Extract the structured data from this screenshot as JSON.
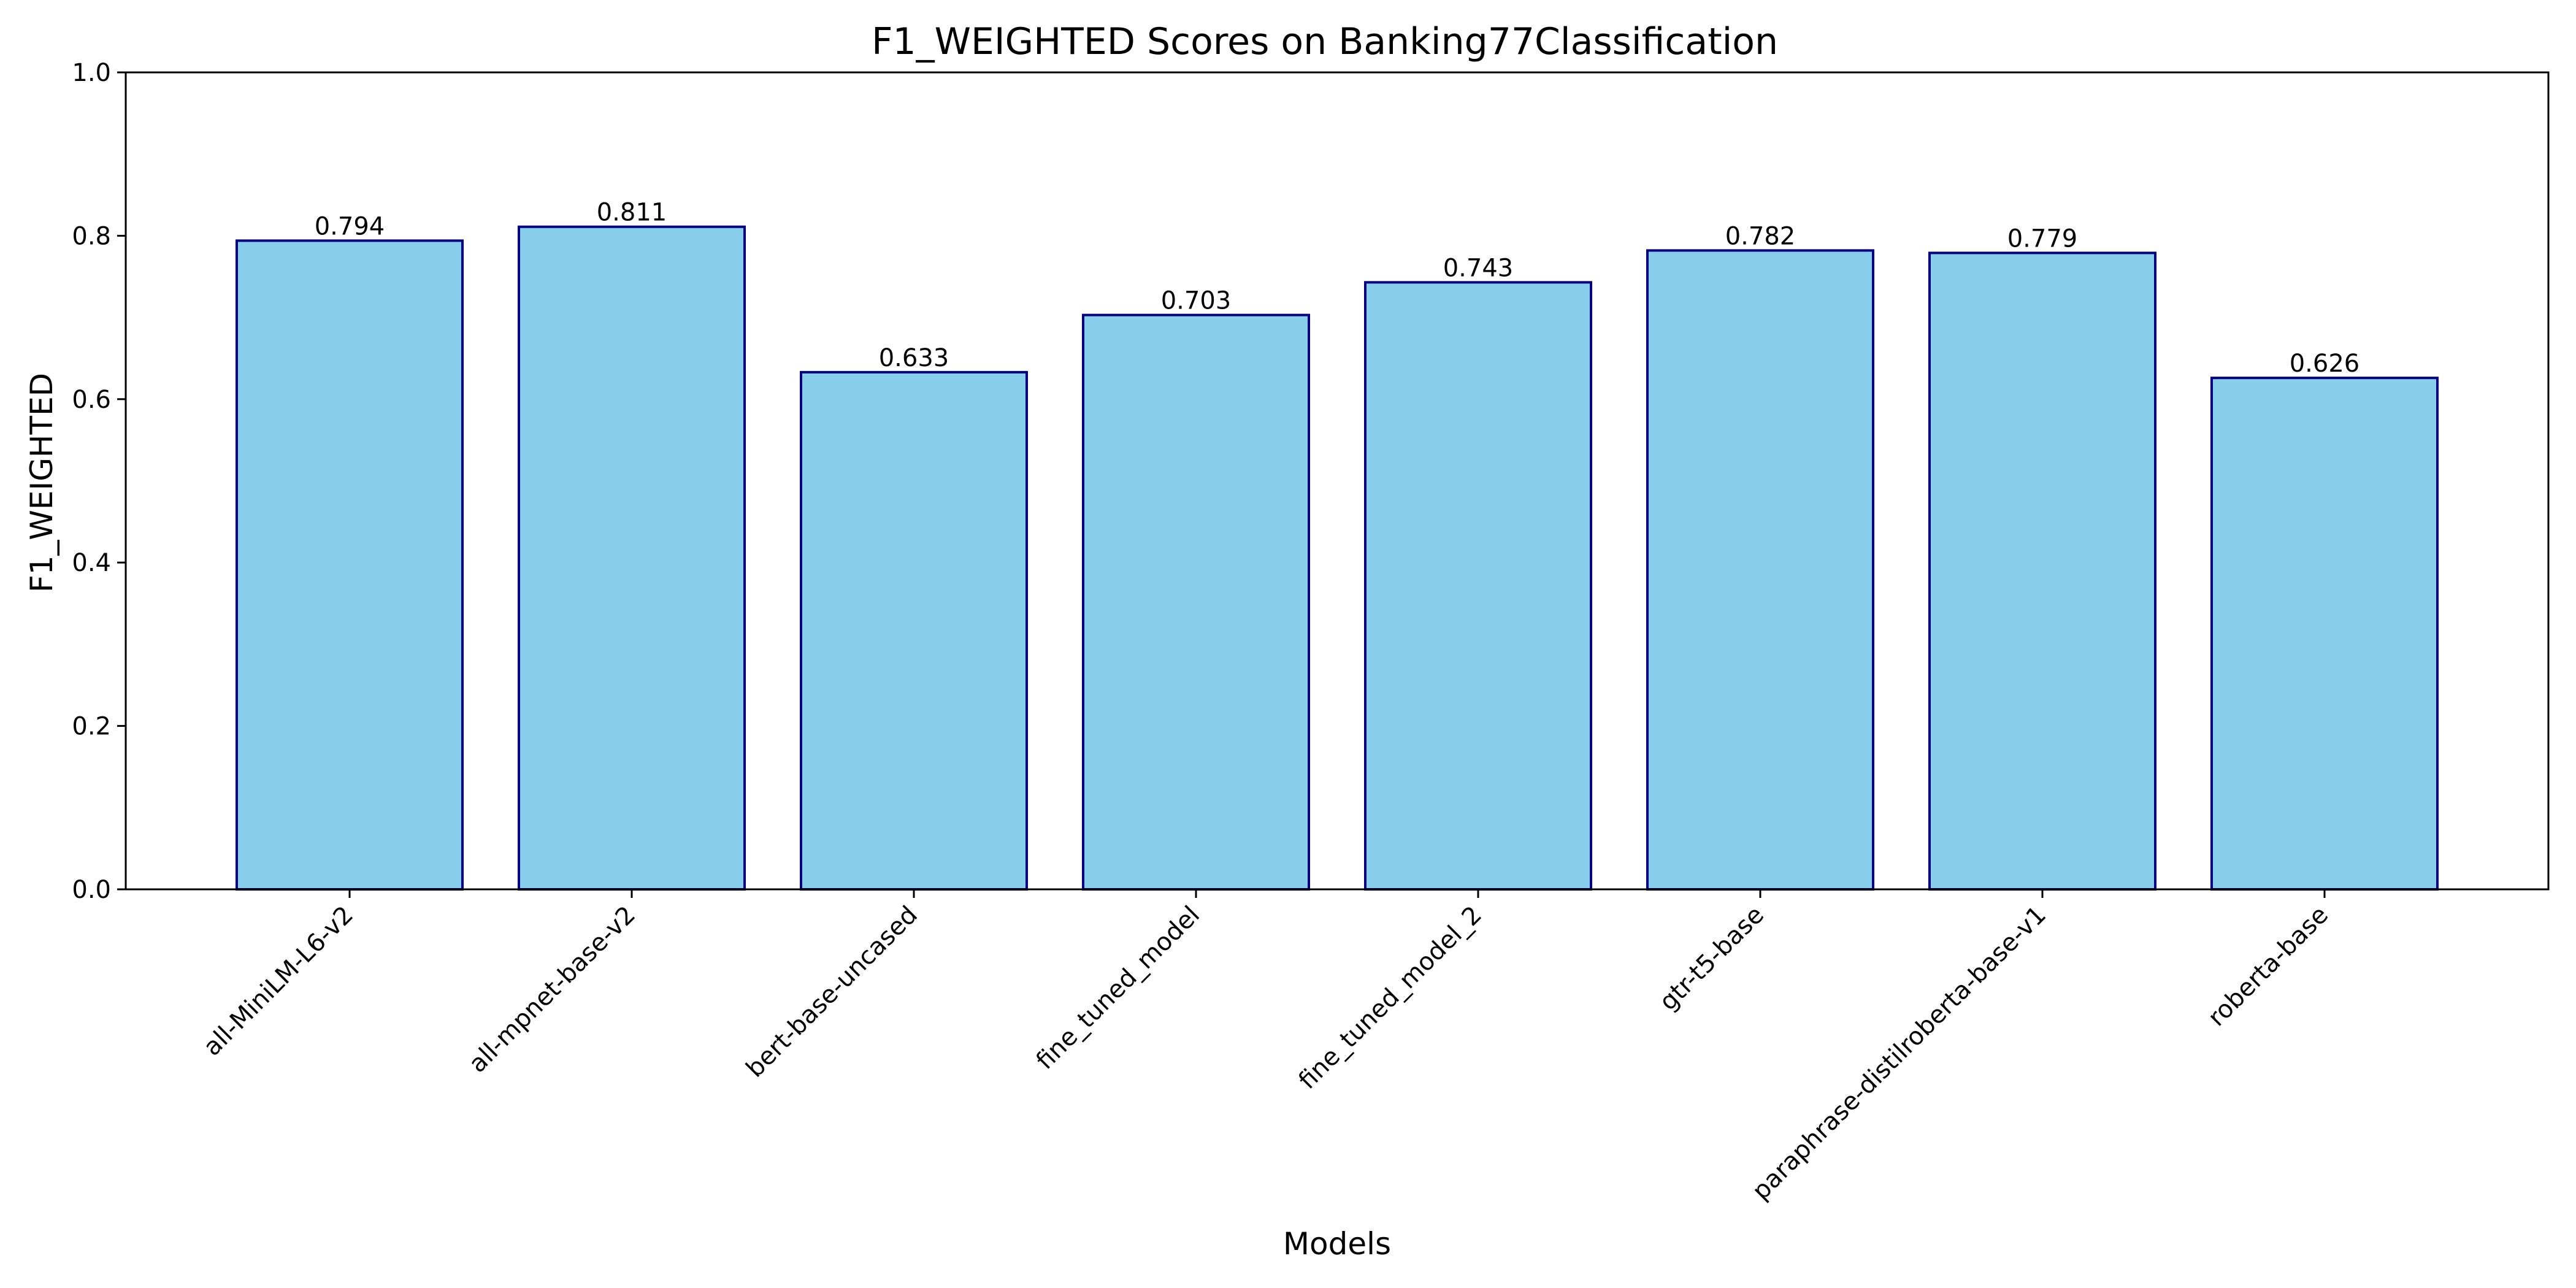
{
  "chart_data": {
    "type": "bar",
    "title": "F1_WEIGHTED Scores on Banking77Classification",
    "xlabel": "Models",
    "ylabel": "F1_WEIGHTED",
    "ylim": [
      0.0,
      1.0
    ],
    "yticks": [
      "0.0",
      "0.2",
      "0.4",
      "0.6",
      "0.8",
      "1.0"
    ],
    "categories": [
      "all-MiniLM-L6-v2",
      "all-mpnet-base-v2",
      "bert-base-uncased",
      "fine_tuned_model",
      "fine_tuned_model_2",
      "gtr-t5-base",
      "paraphrase-distilroberta-base-v1",
      "roberta-base"
    ],
    "values": [
      0.794,
      0.811,
      0.633,
      0.703,
      0.743,
      0.782,
      0.779,
      0.626
    ],
    "value_labels": [
      "0.794",
      "0.811",
      "0.633",
      "0.703",
      "0.743",
      "0.782",
      "0.779",
      "0.626"
    ],
    "grid": false,
    "colors": {
      "bar_fill": "#87ceeb",
      "bar_edge": "#000080",
      "axis": "#000000"
    }
  }
}
